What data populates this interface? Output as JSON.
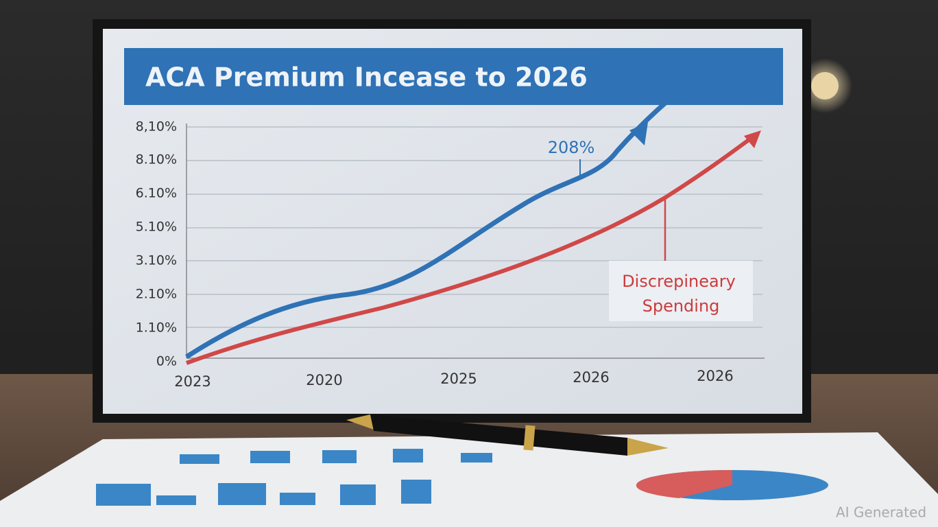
{
  "screen": {
    "title": "ACA Premium Incease to 2026",
    "y_labels": [
      "8,10%",
      "8.10%",
      "6.10%",
      "5.10%",
      "3.10%",
      "2.10%",
      "1.10%",
      "0%"
    ],
    "x_labels": [
      "2023",
      "2020",
      "2025",
      "2026",
      "2026"
    ],
    "annotation": "208%",
    "callout": [
      "Discrepineary",
      "Spending"
    ]
  },
  "watermark": "AI Generated"
}
